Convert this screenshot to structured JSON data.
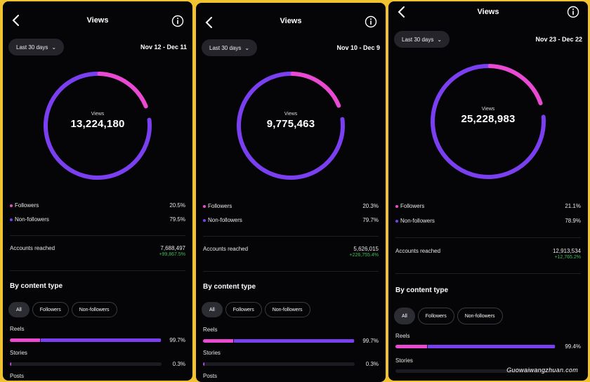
{
  "colors": {
    "followers": "#e94ad1",
    "non_followers": "#7b3ff2",
    "positive": "#3dbf5a"
  },
  "panels": [
    {
      "title": "Views",
      "period_label": "Last 30 days",
      "date_range": "Nov 12 - Dec 11",
      "donut_label": "Views",
      "total_views": "13,224,180",
      "followers_label": "Followers",
      "followers_pct": "20.5%",
      "followers_fraction": 0.205,
      "non_followers_label": "Non-followers",
      "non_followers_pct": "79.5%",
      "accounts_label": "Accounts reached",
      "accounts_value": "7,688,497",
      "accounts_delta": "+99,867.5%",
      "section_title": "By content type",
      "filters": [
        "All",
        "Followers",
        "Non-followers"
      ],
      "content_types": [
        {
          "label": "Reels",
          "pct": "99.7%",
          "value": 0.997,
          "pink_share": 0.2
        },
        {
          "label": "Stories",
          "pct": "0.3%",
          "value": 0.003,
          "pink_share": 0.0
        },
        {
          "label": "Posts"
        }
      ]
    },
    {
      "title": "Views",
      "period_label": "Last 30 days",
      "date_range": "Nov 10 - Dec 9",
      "donut_label": "Views",
      "total_views": "9,775,463",
      "followers_label": "Followers",
      "followers_pct": "20.3%",
      "followers_fraction": 0.203,
      "non_followers_label": "Non-followers",
      "non_followers_pct": "79.7%",
      "accounts_label": "Accounts reached",
      "accounts_value": "5,626,015",
      "accounts_delta": "+226,755.4%",
      "section_title": "By content type",
      "filters": [
        "All",
        "Followers",
        "Non-followers"
      ],
      "content_types": [
        {
          "label": "Reels",
          "pct": "99.7%",
          "value": 0.997,
          "pink_share": 0.2
        },
        {
          "label": "Stories",
          "pct": "0.3%",
          "value": 0.003,
          "pink_share": 0.0
        },
        {
          "label": "Posts"
        }
      ]
    },
    {
      "title": "Views",
      "period_label": "Last 30 days",
      "date_range": "Nov 23 - Dec 22",
      "donut_label": "Views",
      "total_views": "25,228,983",
      "followers_label": "Followers",
      "followers_pct": "21.1%",
      "followers_fraction": 0.211,
      "non_followers_label": "Non-followers",
      "non_followers_pct": "78.9%",
      "accounts_label": "Accounts reached",
      "accounts_value": "12,913,534",
      "accounts_delta": "+12,765.2%",
      "section_title": "By content type",
      "filters": [
        "All",
        "Followers",
        "Non-followers"
      ],
      "content_types": [
        {
          "label": "Reels",
          "pct": "99.4%",
          "value": 0.994,
          "pink_share": 0.2
        },
        {
          "label": "Stories"
        }
      ]
    }
  ],
  "watermark": "Guowaiwangzhuan.com"
}
